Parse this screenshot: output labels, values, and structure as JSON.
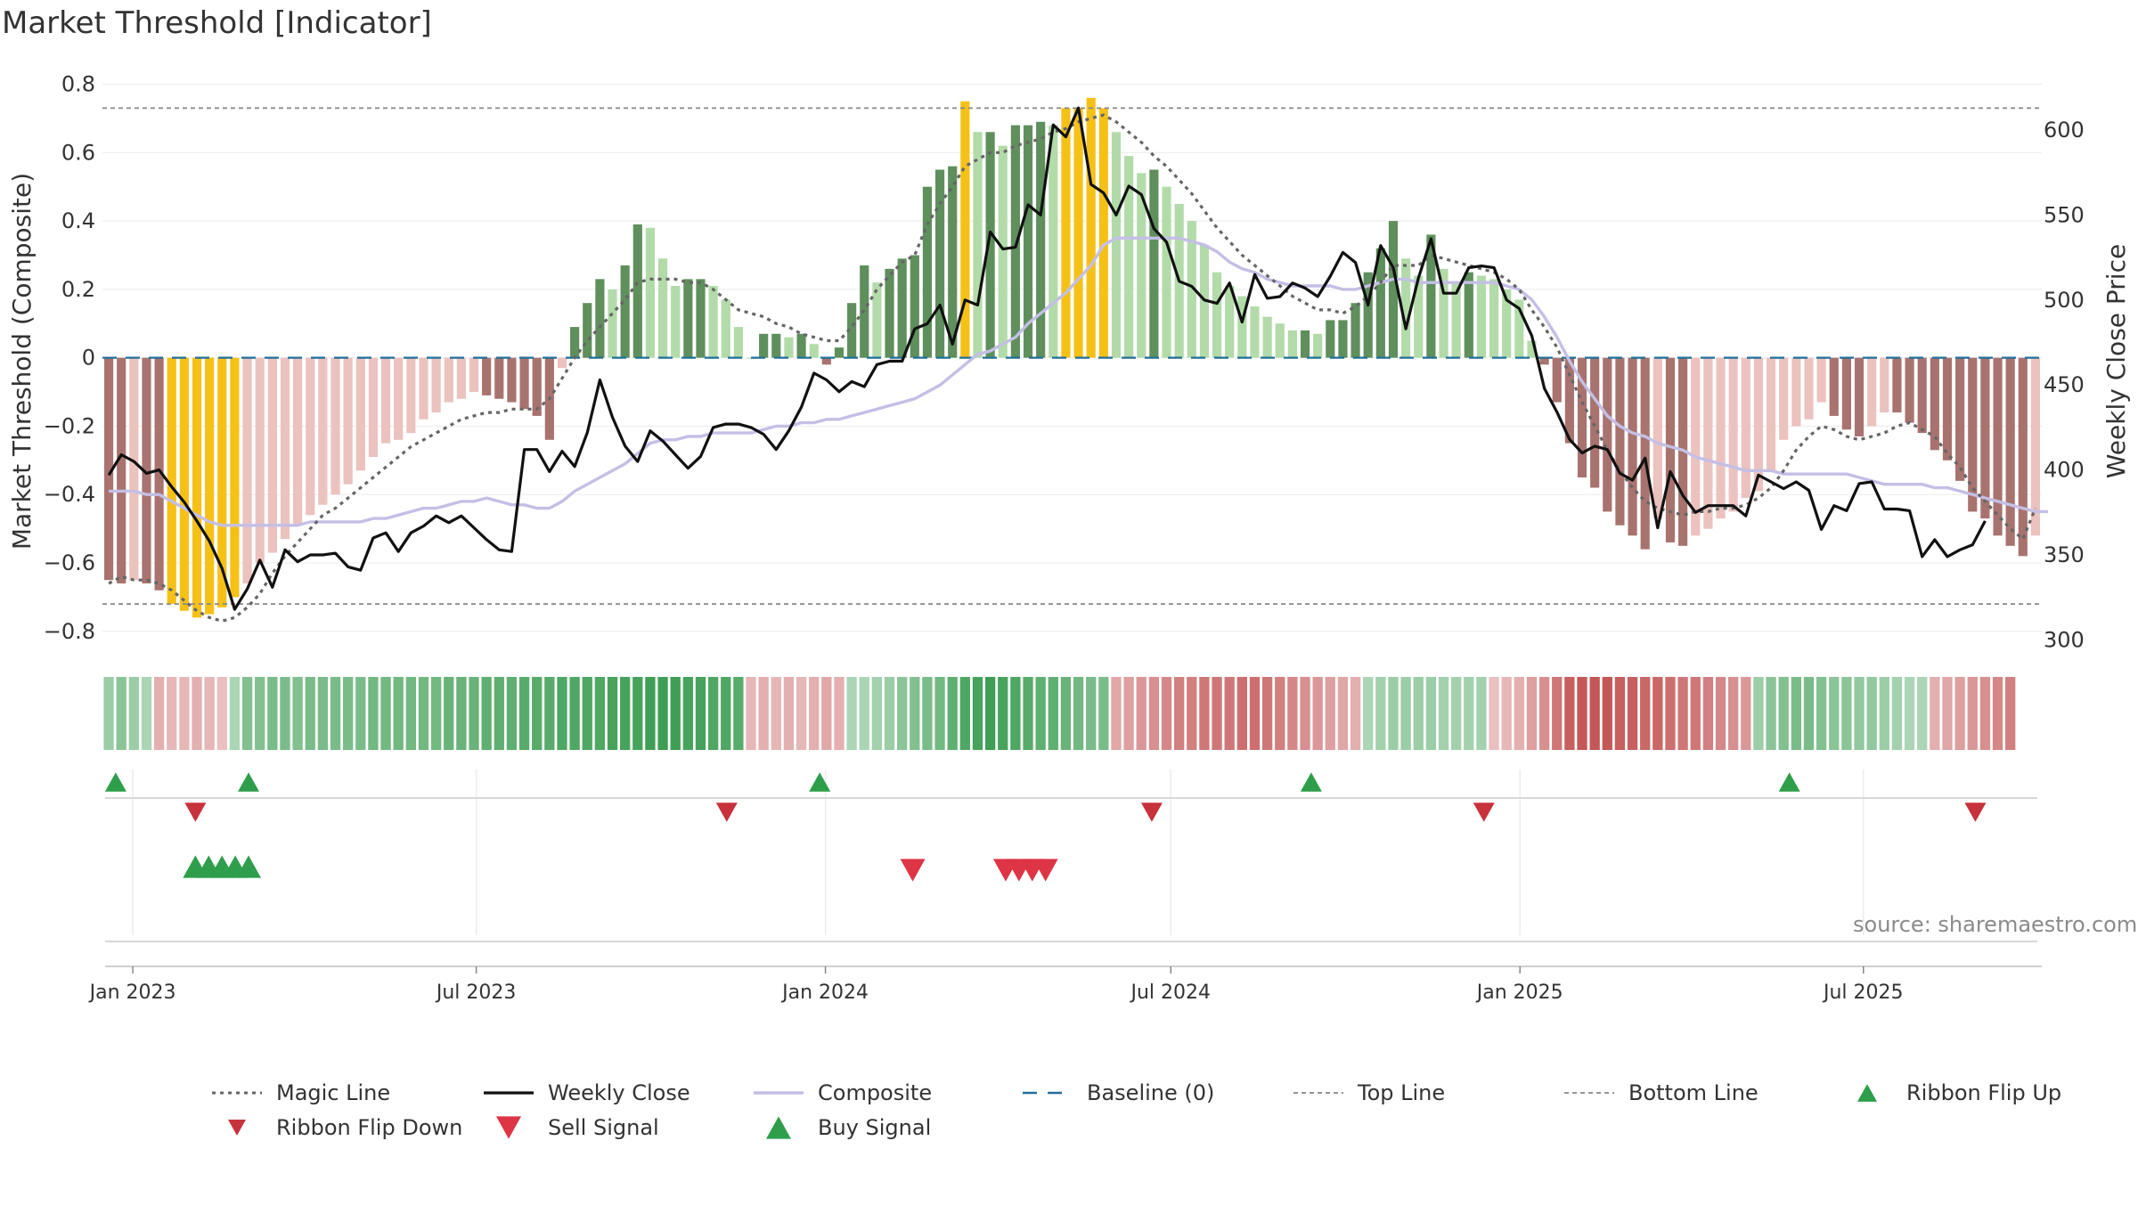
{
  "title": "Market Threshold [Indicator]",
  "source": "source: sharemaestro.com",
  "colors": {
    "neg_light": "#ebc2be",
    "neg_dark": "#a8736f",
    "pos_light": "#b2dba9",
    "pos_dark": "#5f8f5c",
    "extreme": "#f6c117",
    "close": "#111111",
    "composite": "#c4bfe6",
    "magic": "#666666",
    "baseline": "#1f6f9a",
    "signal_buy": "#2e9e4a",
    "signal_sell": "#d63040"
  },
  "chart_data": {
    "type": "bar",
    "title": "Market Threshold [Indicator]",
    "ylabel": "Market Threshold (Composite)",
    "y2label": "Weekly Close Price",
    "ylim": [
      -0.85,
      0.83
    ],
    "y2lim": [
      295,
      633
    ],
    "yticks": [
      0.8,
      0.6,
      0.4,
      0.2,
      0,
      -0.2,
      -0.4,
      -0.6,
      -0.8
    ],
    "ytick_labels": [
      "0.8",
      "0.6",
      "0.4",
      "0.2",
      "0",
      "−0.2",
      "−0.4",
      "−0.6",
      "−0.8"
    ],
    "y2ticks": [
      600,
      550,
      500,
      450,
      400,
      350,
      300
    ],
    "y2tick_labels": [
      "600",
      "550",
      "500",
      "450",
      "400",
      "350",
      "300"
    ],
    "x_start": "2022-12-16",
    "x_end": "2025-10-03",
    "xticks": [
      "2023-01-01",
      "2023-07-01",
      "2024-01-01",
      "2024-07-01",
      "2025-01-01",
      "2025-07-01"
    ],
    "xtick_labels": [
      "Jan 2023",
      "Jul 2023",
      "Jan 2024",
      "Jul 2024",
      "Jan 2025",
      "Jul 2025"
    ],
    "top_line": 0.73,
    "bottom_line": -0.72,
    "grid": true,
    "composite_bars": [
      -0.65,
      -0.66,
      -0.65,
      -0.66,
      -0.68,
      -0.72,
      -0.74,
      -0.76,
      -0.75,
      -0.73,
      -0.7,
      -0.66,
      -0.6,
      -0.57,
      -0.53,
      -0.49,
      -0.46,
      -0.43,
      -0.4,
      -0.37,
      -0.33,
      -0.29,
      -0.25,
      -0.24,
      -0.22,
      -0.18,
      -0.16,
      -0.13,
      -0.12,
      -0.1,
      -0.11,
      -0.12,
      -0.13,
      -0.15,
      -0.17,
      -0.24,
      -0.03,
      0.09,
      0.16,
      0.23,
      0.2,
      0.27,
      0.39,
      0.38,
      0.29,
      0.21,
      0.23,
      0.23,
      0.21,
      0.17,
      0.09,
      0,
      0.07,
      0.07,
      0.06,
      0.07,
      0.04,
      -0.02,
      0.03,
      0.16,
      0.27,
      0.22,
      0.26,
      0.29,
      0.3,
      0.5,
      0.55,
      0.56,
      0.75,
      0.66,
      0.66,
      0.62,
      0.68,
      0.68,
      0.69,
      0.68,
      0.73,
      0.73,
      0.76,
      0.73,
      0.66,
      0.59,
      0.54,
      0.55,
      0.5,
      0.45,
      0.4,
      0.33,
      0.25,
      0.21,
      0.18,
      0.15,
      0.12,
      0.1,
      0.08,
      0.08,
      0.07,
      0.11,
      0.11,
      0.16,
      0.25,
      0.32,
      0.4,
      0.29,
      0.24,
      0.36,
      0.26,
      0.22,
      0.25,
      0.24,
      0.23,
      0.2,
      0.17,
      0.05,
      -0.02,
      -0.13,
      -0.25,
      -0.35,
      -0.38,
      -0.45,
      -0.49,
      -0.52,
      -0.56,
      -0.47,
      -0.54,
      -0.55,
      -0.52,
      -0.5,
      -0.47,
      -0.45,
      -0.41,
      -0.39,
      -0.33,
      -0.24,
      -0.2,
      -0.18,
      -0.13,
      -0.17,
      -0.21,
      -0.23,
      -0.2,
      -0.16,
      -0.16,
      -0.19,
      -0.22,
      -0.27,
      -0.3,
      -0.36,
      -0.45,
      -0.47,
      -0.52,
      -0.55,
      -0.58,
      -0.52
    ],
    "magic_line": [
      -0.66,
      -0.64,
      -0.65,
      -0.65,
      -0.66,
      -0.68,
      -0.71,
      -0.74,
      -0.76,
      -0.77,
      -0.76,
      -0.73,
      -0.69,
      -0.63,
      -0.58,
      -0.54,
      -0.5,
      -0.46,
      -0.44,
      -0.41,
      -0.38,
      -0.35,
      -0.32,
      -0.29,
      -0.26,
      -0.24,
      -0.22,
      -0.2,
      -0.18,
      -0.17,
      -0.16,
      -0.16,
      -0.15,
      -0.15,
      -0.15,
      -0.12,
      -0.06,
      0,
      0.05,
      0.09,
      0.13,
      0.17,
      0.22,
      0.23,
      0.23,
      0.23,
      0.22,
      0.22,
      0.2,
      0.17,
      0.14,
      0.13,
      0.12,
      0.1,
      0.09,
      0.07,
      0.06,
      0.05,
      0.05,
      0.09,
      0.14,
      0.2,
      0.24,
      0.28,
      0.3,
      0.39,
      0.45,
      0.5,
      0.56,
      0.58,
      0.6,
      0.6,
      0.62,
      0.63,
      0.64,
      0.66,
      0.67,
      0.69,
      0.7,
      0.71,
      0.69,
      0.66,
      0.63,
      0.59,
      0.56,
      0.52,
      0.48,
      0.43,
      0.38,
      0.34,
      0.3,
      0.27,
      0.24,
      0.21,
      0.18,
      0.16,
      0.14,
      0.14,
      0.13,
      0.15,
      0.18,
      0.22,
      0.27,
      0.27,
      0.27,
      0.3,
      0.29,
      0.28,
      0.27,
      0.26,
      0.25,
      0.23,
      0.2,
      0.14,
      0.09,
      0.03,
      -0.05,
      -0.13,
      -0.2,
      -0.27,
      -0.33,
      -0.38,
      -0.42,
      -0.44,
      -0.45,
      -0.46,
      -0.45,
      -0.45,
      -0.44,
      -0.44,
      -0.43,
      -0.41,
      -0.38,
      -0.33,
      -0.27,
      -0.23,
      -0.2,
      -0.21,
      -0.23,
      -0.24,
      -0.23,
      -0.22,
      -0.2,
      -0.19,
      -0.21,
      -0.23,
      -0.28,
      -0.32,
      -0.38,
      -0.42,
      -0.46,
      -0.5,
      -0.53,
      -0.44
    ],
    "composite_line": [
      -0.39,
      -0.39,
      -0.39,
      -0.4,
      -0.4,
      -0.42,
      -0.44,
      -0.46,
      -0.48,
      -0.49,
      -0.49,
      -0.49,
      -0.49,
      -0.49,
      -0.49,
      -0.49,
      -0.48,
      -0.48,
      -0.48,
      -0.48,
      -0.48,
      -0.47,
      -0.47,
      -0.46,
      -0.45,
      -0.44,
      -0.44,
      -0.43,
      -0.42,
      -0.42,
      -0.41,
      -0.42,
      -0.43,
      -0.43,
      -0.44,
      -0.44,
      -0.42,
      -0.39,
      -0.37,
      -0.35,
      -0.33,
      -0.31,
      -0.28,
      -0.25,
      -0.24,
      -0.24,
      -0.23,
      -0.23,
      -0.22,
      -0.22,
      -0.22,
      -0.22,
      -0.21,
      -0.2,
      -0.2,
      -0.19,
      -0.19,
      -0.18,
      -0.18,
      -0.17,
      -0.16,
      -0.15,
      -0.14,
      -0.13,
      -0.12,
      -0.1,
      -0.08,
      -0.05,
      -0.02,
      0.01,
      0.02,
      0.04,
      0.06,
      0.1,
      0.13,
      0.16,
      0.19,
      0.23,
      0.27,
      0.33,
      0.35,
      0.35,
      0.35,
      0.35,
      0.35,
      0.35,
      0.34,
      0.33,
      0.31,
      0.28,
      0.26,
      0.25,
      0.23,
      0.22,
      0.21,
      0.21,
      0.21,
      0.21,
      0.2,
      0.2,
      0.21,
      0.22,
      0.23,
      0.23,
      0.22,
      0.22,
      0.22,
      0.22,
      0.22,
      0.22,
      0.22,
      0.21,
      0.2,
      0.17,
      0.12,
      0.06,
      -0.01,
      -0.07,
      -0.12,
      -0.17,
      -0.2,
      -0.22,
      -0.23,
      -0.25,
      -0.26,
      -0.27,
      -0.29,
      -0.3,
      -0.31,
      -0.32,
      -0.33,
      -0.33,
      -0.33,
      -0.34,
      -0.34,
      -0.34,
      -0.34,
      -0.34,
      -0.34,
      -0.35,
      -0.36,
      -0.37,
      -0.37,
      -0.37,
      -0.37,
      -0.38,
      -0.38,
      -0.39,
      -0.4,
      -0.41,
      -0.42,
      -0.43,
      -0.44,
      -0.45,
      -0.45
    ],
    "weekly_close": [
      397,
      409,
      405,
      398,
      400,
      390,
      381,
      370,
      358,
      342,
      318,
      330,
      347,
      331,
      353,
      346,
      350,
      350,
      351,
      343,
      341,
      360,
      363,
      352,
      363,
      367,
      373,
      369,
      373,
      366,
      359,
      353,
      352,
      412,
      412,
      399,
      411,
      402,
      422,
      453,
      431,
      414,
      405,
      423,
      417,
      409,
      401,
      408,
      425,
      427,
      427,
      425,
      421,
      412,
      423,
      437,
      457,
      453,
      446,
      452,
      449,
      462,
      464,
      464,
      483,
      486,
      497,
      474,
      500,
      497,
      540,
      530,
      531,
      556,
      550,
      603,
      596,
      613,
      568,
      563,
      550,
      567,
      562,
      542,
      534,
      511,
      508,
      500,
      498,
      510,
      487,
      515,
      501,
      502,
      510,
      507,
      502,
      514,
      528,
      522,
      497,
      532,
      519,
      483,
      513,
      536,
      504,
      504,
      519,
      520,
      519,
      500,
      495,
      479,
      448,
      434,
      418,
      410,
      414,
      412,
      398,
      394,
      407,
      366,
      399,
      385,
      375,
      379,
      379,
      379,
      373,
      397,
      393,
      389,
      393,
      388,
      365,
      379,
      376,
      392,
      393,
      377,
      377,
      376,
      349,
      359,
      349,
      353,
      356,
      370
    ],
    "ribbon": [
      0.35,
      0.45,
      0.35,
      0.25,
      -0.25,
      -0.2,
      -0.2,
      -0.25,
      -0.2,
      -0.15,
      0.25,
      0.5,
      0.5,
      0.55,
      0.55,
      0.5,
      0.55,
      0.55,
      0.55,
      0.55,
      0.55,
      0.6,
      0.6,
      0.6,
      0.6,
      0.6,
      0.6,
      0.65,
      0.65,
      0.65,
      0.7,
      0.7,
      0.7,
      0.75,
      0.75,
      0.75,
      0.8,
      0.8,
      0.8,
      0.8,
      0.85,
      0.85,
      0.85,
      0.9,
      0.9,
      0.9,
      0.85,
      0.85,
      0.8,
      0.8,
      0.75,
      -0.2,
      -0.25,
      -0.2,
      -0.25,
      -0.2,
      -0.25,
      -0.3,
      -0.25,
      0.25,
      0.25,
      0.3,
      0.35,
      0.45,
      0.5,
      0.55,
      0.6,
      0.7,
      0.8,
      0.85,
      0.9,
      0.85,
      0.8,
      0.75,
      0.7,
      0.7,
      0.65,
      0.6,
      0.55,
      0.55,
      -0.3,
      -0.35,
      -0.4,
      -0.45,
      -0.5,
      -0.55,
      -0.55,
      -0.6,
      -0.6,
      -0.6,
      -0.65,
      -0.65,
      -0.6,
      -0.55,
      -0.5,
      -0.45,
      -0.4,
      -0.35,
      -0.3,
      -0.25,
      0.25,
      0.3,
      0.35,
      0.35,
      0.35,
      0.35,
      0.3,
      0.3,
      0.3,
      0.3,
      -0.15,
      -0.2,
      -0.25,
      -0.35,
      -0.45,
      -0.6,
      -0.75,
      -0.8,
      -0.8,
      -0.8,
      -0.75,
      -0.75,
      -0.7,
      -0.7,
      -0.65,
      -0.6,
      -0.6,
      -0.55,
      -0.5,
      -0.45,
      -0.4,
      0.35,
      0.45,
      0.5,
      0.55,
      0.55,
      0.5,
      0.45,
      0.45,
      0.4,
      0.4,
      0.35,
      0.3,
      0.25,
      0.25,
      -0.25,
      -0.3,
      -0.35,
      -0.4,
      -0.45,
      -0.5,
      -0.55
    ],
    "ribbon_flip_up": [
      "2022-12-23",
      "2023-03-03",
      "2023-12-29",
      "2024-09-13",
      "2025-05-23"
    ],
    "ribbon_flip_down": [
      "2023-02-03",
      "2023-11-10",
      "2024-06-21",
      "2024-12-13",
      "2025-08-29"
    ],
    "sell_signal": [
      "2024-02-16",
      "2024-04-05",
      "2024-04-12",
      "2024-04-19",
      "2024-04-26"
    ],
    "buy_signal": [
      "2023-02-03",
      "2023-02-10",
      "2023-02-17",
      "2023-02-24",
      "2023-03-03"
    ],
    "legend_placement": "bottom",
    "legend": {
      "magic_line": "Magic Line",
      "weekly_close": "Weekly Close",
      "composite": "Composite",
      "baseline": "Baseline (0)",
      "top_line": "Top Line",
      "bottom_line": "Bottom Line",
      "ribbon_flip_up": "Ribbon Flip Up",
      "ribbon_flip_down": "Ribbon Flip Down",
      "sell_signal": "Sell Signal",
      "buy_signal": "Buy Signal"
    }
  }
}
